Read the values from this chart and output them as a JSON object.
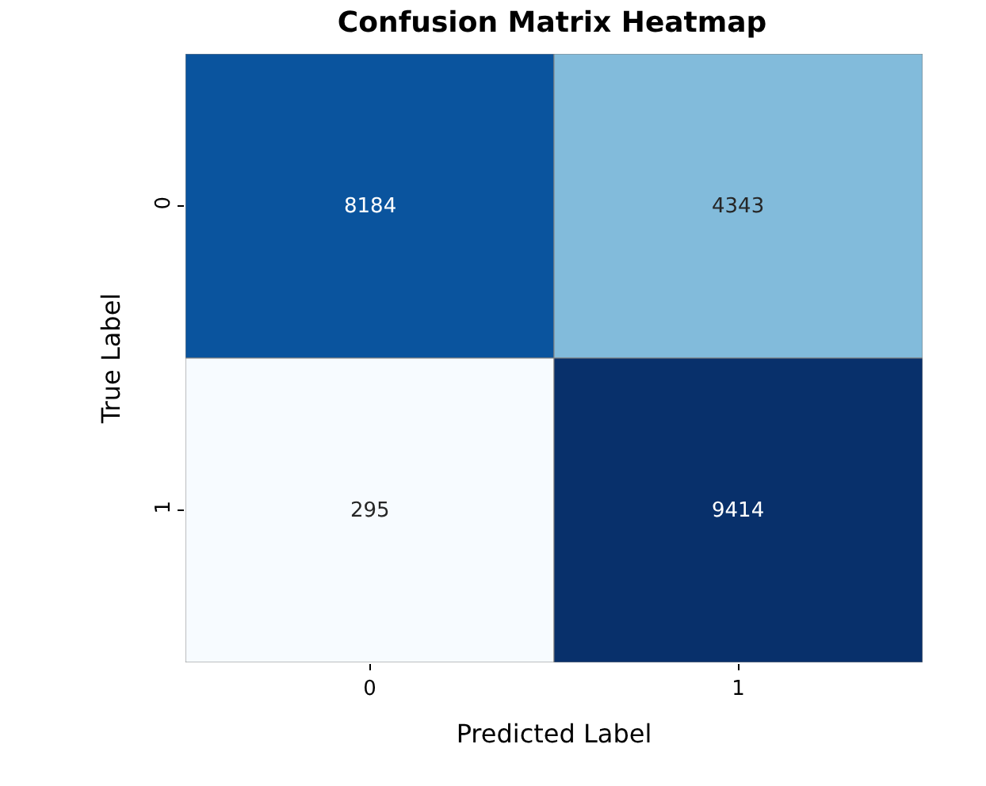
{
  "chart_data": {
    "type": "heatmap",
    "title": "Confusion Matrix Heatmap",
    "xlabel": "Predicted Label",
    "ylabel": "True Label",
    "categories": [
      "0",
      "1"
    ],
    "y_categories": [
      "0",
      "1"
    ],
    "cells": [
      [
        8184,
        4343
      ],
      [
        295,
        9414
      ]
    ],
    "data_labels": true
  }
}
